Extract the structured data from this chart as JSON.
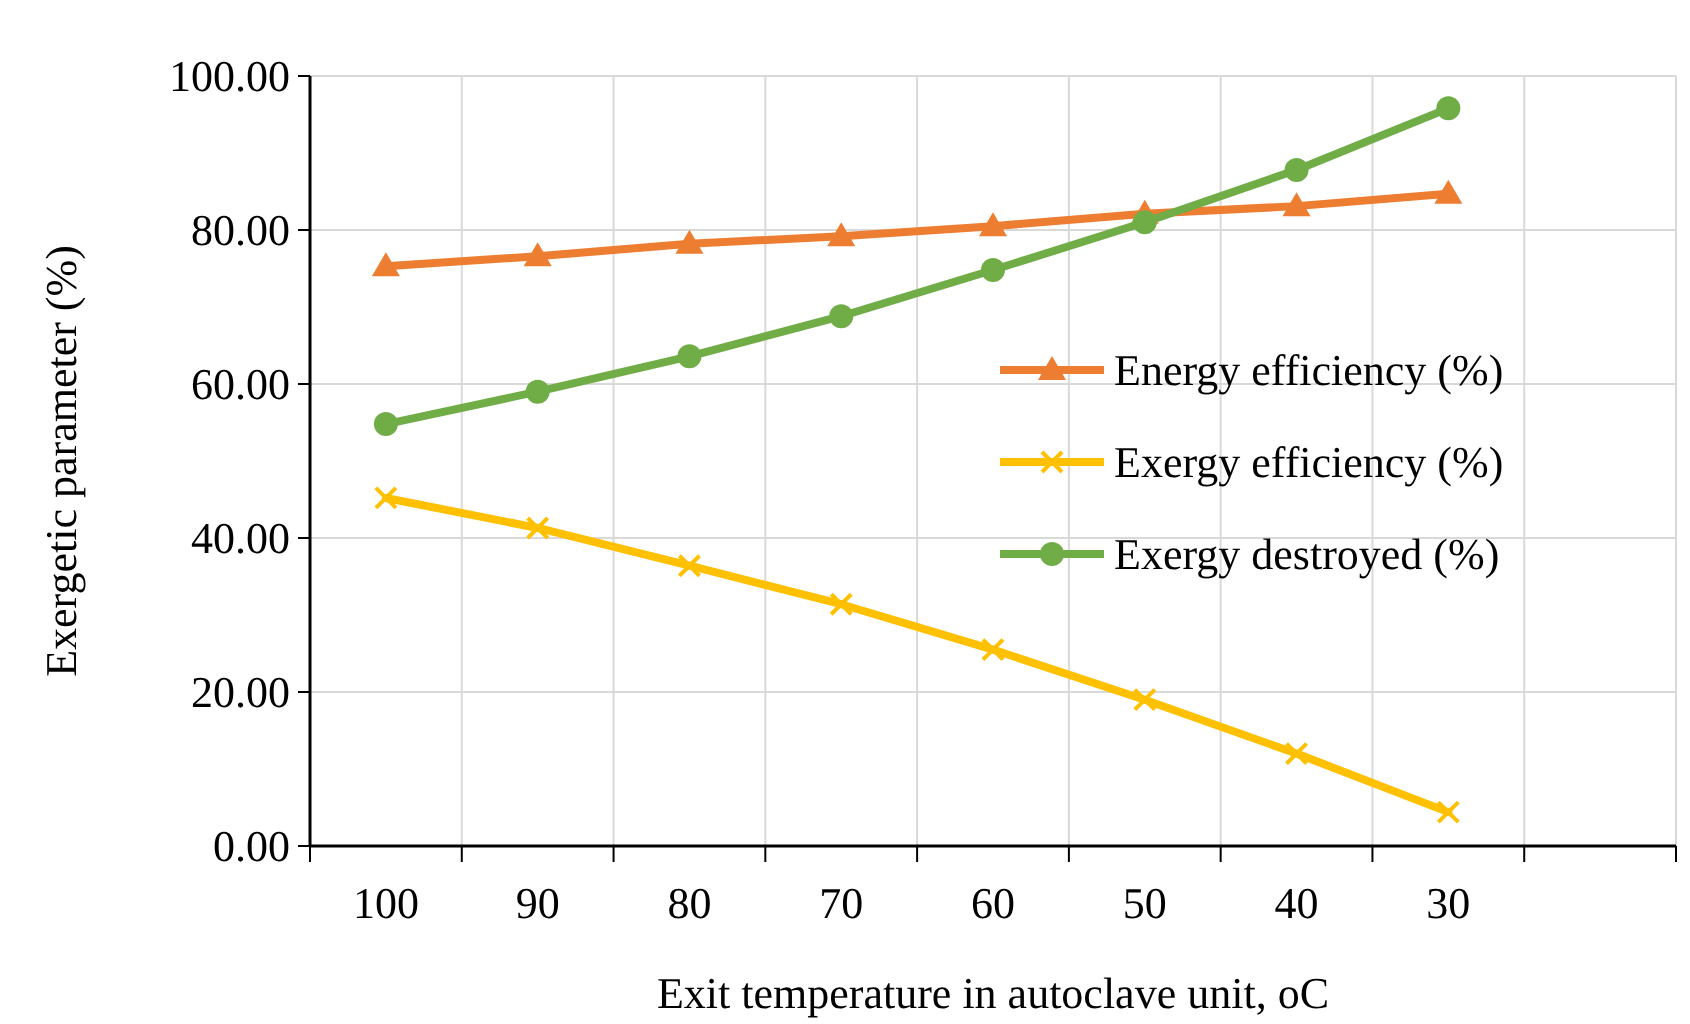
{
  "chart_data": {
    "type": "line",
    "xlabel": "Exit temperature in autoclave unit, oC",
    "ylabel": "Exergetic parameter (%)",
    "categories": [
      "100",
      "90",
      "80",
      "70",
      "60",
      "50",
      "40",
      "30",
      null
    ],
    "series": [
      {
        "name": "Energy efficiency (%)",
        "color": "#ed7d31",
        "marker": "triangle",
        "values": [
          75.3,
          76.6,
          78.2,
          79.2,
          80.5,
          82.1,
          83.1,
          84.7,
          null
        ]
      },
      {
        "name": "Exergy efficiency (%)",
        "color": "#ffc000",
        "marker": "cross",
        "values": [
          45.2,
          41.3,
          36.4,
          31.4,
          25.5,
          19.0,
          12.0,
          4.4,
          null
        ]
      },
      {
        "name": "Exergy destroyed  (%)",
        "color": "#70ad47",
        "marker": "circle",
        "values": [
          54.8,
          59.0,
          63.6,
          68.8,
          74.8,
          81.0,
          87.8,
          95.8,
          null
        ]
      }
    ],
    "ylim": [
      0,
      100
    ],
    "yticks": [
      {
        "value": 0,
        "label": "0.00"
      },
      {
        "value": 20,
        "label": "20.00"
      },
      {
        "value": 40,
        "label": "40.00"
      },
      {
        "value": 60,
        "label": "60.00"
      },
      {
        "value": 80,
        "label": "80.00"
      },
      {
        "value": 100,
        "label": "100.00"
      }
    ],
    "grid": true,
    "legend": "right",
    "line_style": "solid"
  }
}
